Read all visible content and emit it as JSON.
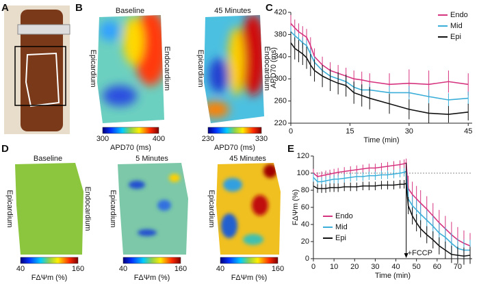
{
  "panel_labels": [
    "A",
    "B",
    "C",
    "D",
    "E"
  ],
  "maps": [
    {
      "title": "Baseline",
      "left": "Epicardium",
      "right": "Endocardium"
    },
    {
      "title": "45 Minutes",
      "left": "Epicardium",
      "right": "Endocardium"
    },
    {
      "title": "Baseline",
      "left": "Epicardium",
      "right": "Endocardium"
    },
    {
      "title": "5 Minutes",
      "left": "Epicardium"
    },
    {
      "title": "45 Minutes",
      "left": "Epicardium"
    }
  ],
  "colorbars": [
    {
      "min": 300,
      "max": 400,
      "label": "APD70 (ms)"
    },
    {
      "min": 230,
      "max": 330,
      "label": "APD70 (ms)"
    },
    {
      "min": 40,
      "max": 160,
      "label": "FΔΨm (%)"
    },
    {
      "min": 40,
      "max": 160,
      "label": "FΔΨm (%)"
    },
    {
      "min": 40,
      "max": 160,
      "label": "FΔΨm (%)"
    }
  ],
  "chart_data": [
    {
      "type": "line",
      "x_label": "Time (min)",
      "y_label": "APD70 (ms)",
      "legend": "upper right",
      "x": [
        0,
        1,
        2,
        3,
        4,
        5,
        6,
        8,
        10,
        12,
        14,
        16,
        18,
        20,
        25,
        30,
        35,
        40,
        45
      ],
      "xlim": [
        0,
        46
      ],
      "xticks": [
        0,
        15,
        30,
        45
      ],
      "ylim": [
        220,
        420
      ],
      "yticks": [
        220,
        260,
        300,
        340,
        380,
        420
      ],
      "series": [
        {
          "name": "Endo",
          "color": "#d6337f",
          "values": [
            400,
            392,
            385,
            380,
            375,
            360,
            340,
            325,
            315,
            310,
            305,
            300,
            298,
            295,
            290,
            292,
            290,
            295,
            290
          ],
          "errors": [
            15,
            15,
            15,
            15,
            15,
            15,
            15,
            15,
            15,
            15,
            15,
            15,
            15,
            15,
            20,
            25,
            25,
            20,
            20
          ]
        },
        {
          "name": "Mid",
          "color": "#3aaed8",
          "values": [
            385,
            378,
            372,
            365,
            360,
            345,
            330,
            315,
            305,
            300,
            295,
            285,
            280,
            280,
            275,
            275,
            268,
            262,
            265
          ],
          "errors": [
            10,
            10,
            10,
            10,
            10,
            10,
            10,
            10,
            10,
            10,
            10,
            10,
            10,
            10,
            12,
            12,
            12,
            12,
            12
          ]
        },
        {
          "name": "Epi",
          "color": "#111111",
          "values": [
            365,
            355,
            350,
            345,
            338,
            325,
            315,
            305,
            298,
            292,
            288,
            275,
            270,
            265,
            255,
            245,
            238,
            236,
            240
          ],
          "errors": [
            20,
            20,
            20,
            20,
            20,
            20,
            20,
            20,
            20,
            20,
            20,
            20,
            20,
            20,
            18,
            18,
            18,
            15,
            15
          ]
        }
      ]
    },
    {
      "type": "line",
      "x_label": "Time (min)",
      "y_label": "FΔΨm (%)",
      "legend": "lower left",
      "hline": 100,
      "annotation": {
        "text": "+FCCP",
        "x": 45
      },
      "x": [
        0,
        2,
        4,
        6,
        8,
        10,
        12,
        15,
        18,
        21,
        24,
        27,
        30,
        33,
        36,
        39,
        42,
        44,
        45,
        46,
        48,
        50,
        52,
        55,
        58,
        61,
        64,
        67,
        70,
        73,
        76
      ],
      "xlim": [
        0,
        77
      ],
      "xticks": [
        0,
        10,
        20,
        30,
        40,
        50,
        60,
        70
      ],
      "ylim": [
        0,
        120
      ],
      "yticks": [
        0,
        20,
        40,
        60,
        80,
        100,
        120
      ],
      "series": [
        {
          "name": "Endo",
          "color": "#d6337f",
          "values": [
            100,
            96,
            97,
            98,
            99,
            100,
            101,
            102,
            103,
            104,
            105,
            106,
            106,
            107,
            108,
            109,
            110,
            111,
            112,
            82,
            75,
            70,
            65,
            58,
            50,
            42,
            35,
            28,
            22,
            18,
            15
          ],
          "errors": [
            5,
            5,
            5,
            5,
            5,
            5,
            5,
            5,
            5,
            5,
            5,
            5,
            5,
            5,
            5,
            5,
            5,
            5,
            5,
            15,
            15,
            15,
            15,
            15,
            15,
            15,
            15,
            15,
            15,
            15,
            15
          ]
        },
        {
          "name": "Mid",
          "color": "#3aaed8",
          "values": [
            95,
            90,
            90,
            91,
            92,
            93,
            93,
            94,
            95,
            96,
            96,
            97,
            97,
            98,
            98,
            99,
            100,
            101,
            102,
            70,
            62,
            57,
            52,
            45,
            38,
            30,
            25,
            18,
            12,
            10,
            10
          ],
          "errors": [
            5,
            5,
            5,
            5,
            5,
            5,
            5,
            5,
            5,
            5,
            5,
            5,
            5,
            5,
            5,
            5,
            5,
            5,
            5,
            12,
            12,
            12,
            12,
            12,
            12,
            12,
            12,
            12,
            12,
            12,
            12
          ]
        },
        {
          "name": "Epi",
          "color": "#111111",
          "values": [
            85,
            82,
            82,
            82,
            83,
            83,
            83,
            84,
            84,
            84,
            85,
            85,
            85,
            86,
            86,
            86,
            87,
            87,
            88,
            62,
            50,
            42,
            35,
            28,
            22,
            15,
            10,
            5,
            4,
            3,
            4
          ],
          "errors": [
            5,
            5,
            5,
            5,
            5,
            5,
            5,
            5,
            5,
            5,
            5,
            5,
            5,
            5,
            5,
            5,
            5,
            5,
            5,
            10,
            10,
            10,
            10,
            10,
            10,
            10,
            10,
            10,
            10,
            10,
            10
          ]
        }
      ]
    }
  ]
}
